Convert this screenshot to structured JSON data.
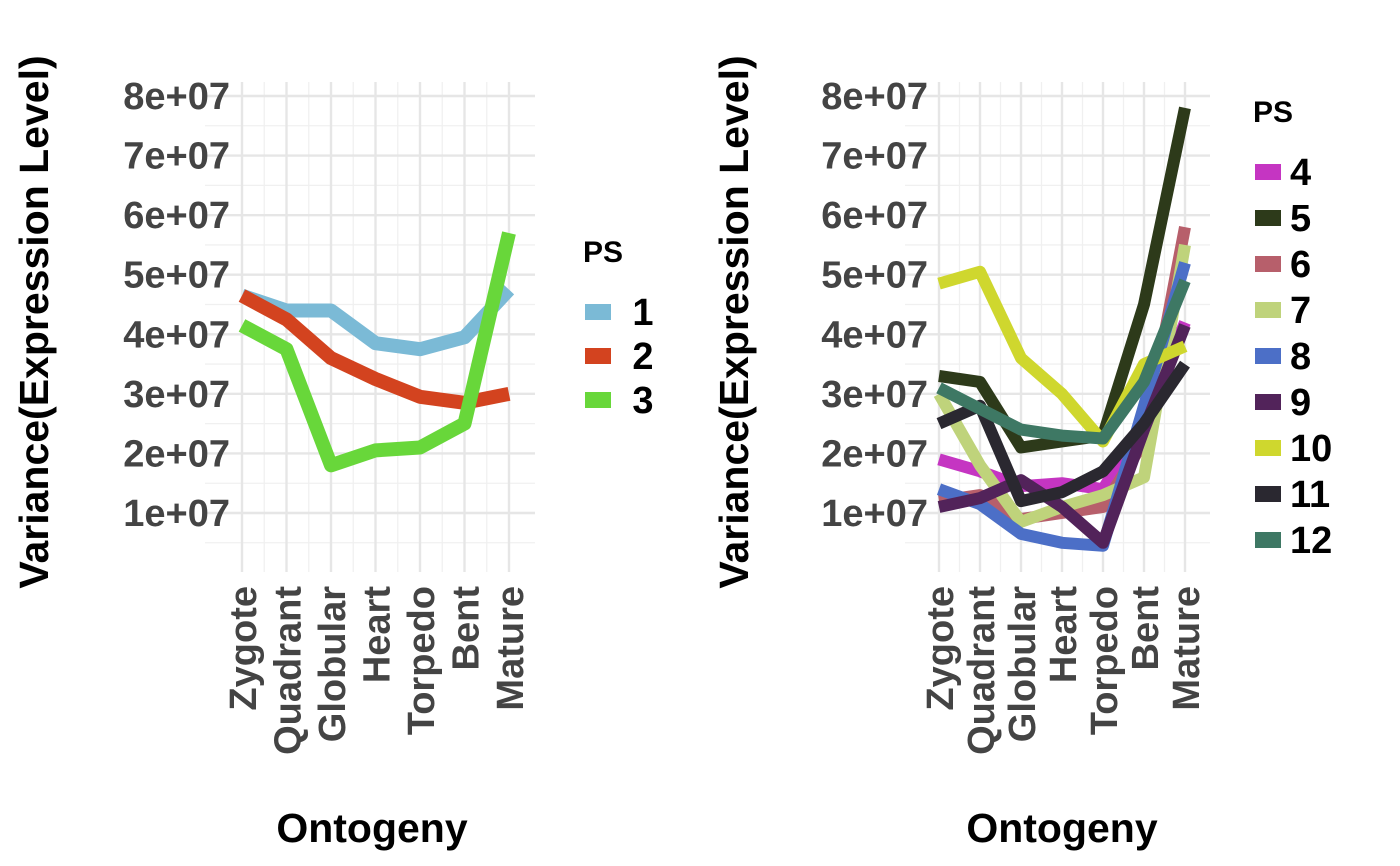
{
  "chart_data": [
    {
      "type": "line",
      "categories": [
        "Zygote",
        "Quadrant",
        "Globular",
        "Heart",
        "Torpedo",
        "Bent",
        "Mature"
      ],
      "xlabel": "Ontogeny",
      "ylabel": "Variance(Expression Level)",
      "ylim": [
        0,
        80000000
      ],
      "yticks": [
        10000000,
        20000000,
        30000000,
        40000000,
        50000000,
        60000000,
        70000000,
        80000000
      ],
      "ytick_labels": [
        "1e+07",
        "2e+07",
        "3e+07",
        "4e+07",
        "5e+07",
        "6e+07",
        "7e+07",
        "8e+07"
      ],
      "grid": true,
      "legend_title": "PS",
      "legend_position": "right",
      "series": [
        {
          "name": "1",
          "color": "#7BBAD6",
          "values": [
            46500000,
            44000000,
            44000000,
            38500000,
            37500000,
            39500000,
            47500000
          ]
        },
        {
          "name": "2",
          "color": "#D3431F",
          "values": [
            46500000,
            42500000,
            36000000,
            32500000,
            29500000,
            28500000,
            30000000
          ]
        },
        {
          "name": "3",
          "color": "#68D73A",
          "values": [
            41500000,
            37500000,
            18000000,
            20500000,
            21000000,
            25000000,
            57000000
          ]
        }
      ]
    },
    {
      "type": "line",
      "categories": [
        "Zygote",
        "Quadrant",
        "Globular",
        "Heart",
        "Torpedo",
        "Bent",
        "Mature"
      ],
      "xlabel": "Ontogeny",
      "ylabel": "Variance(Expression Level)",
      "ylim": [
        5000000,
        80000000
      ],
      "yticks": [
        10000000,
        20000000,
        30000000,
        40000000,
        50000000,
        60000000,
        70000000,
        80000000
      ],
      "ytick_labels": [
        "1e+07",
        "2e+07",
        "3e+07",
        "4e+07",
        "5e+07",
        "6e+07",
        "7e+07",
        "8e+07"
      ],
      "grid": true,
      "legend_title": "PS",
      "legend_position": "right",
      "series": [
        {
          "name": "4",
          "color": "#C535C2",
          "values": [
            19000000,
            17000000,
            14500000,
            15000000,
            14000000,
            25000000,
            42000000
          ]
        },
        {
          "name": "5",
          "color": "#2D3A1A",
          "values": [
            33000000,
            32000000,
            21000000,
            22000000,
            23000000,
            45000000,
            78000000
          ]
        },
        {
          "name": "6",
          "color": "#B75F6B",
          "values": [
            12000000,
            13000000,
            9000000,
            10000000,
            11000000,
            22000000,
            58000000
          ]
        },
        {
          "name": "7",
          "color": "#BFD37B",
          "values": [
            30000000,
            18000000,
            8500000,
            11000000,
            13000000,
            16000000,
            55000000
          ]
        },
        {
          "name": "8",
          "color": "#4C6FC7",
          "values": [
            14000000,
            11500000,
            6500000,
            5000000,
            4500000,
            28000000,
            52000000
          ]
        },
        {
          "name": "9",
          "color": "#52235A",
          "values": [
            11000000,
            12500000,
            15500000,
            11000000,
            5000000,
            24000000,
            41500000
          ]
        },
        {
          "name": "10",
          "color": "#CFD72E",
          "values": [
            48500000,
            50500000,
            36000000,
            30000000,
            22000000,
            35000000,
            38000000
          ]
        },
        {
          "name": "11",
          "color": "#2A2830",
          "values": [
            25000000,
            28000000,
            12000000,
            13500000,
            17000000,
            25000000,
            35000000
          ]
        },
        {
          "name": "12",
          "color": "#3E7864",
          "values": [
            31000000,
            27500000,
            24000000,
            23000000,
            22500000,
            32000000,
            49000000
          ]
        }
      ]
    }
  ]
}
